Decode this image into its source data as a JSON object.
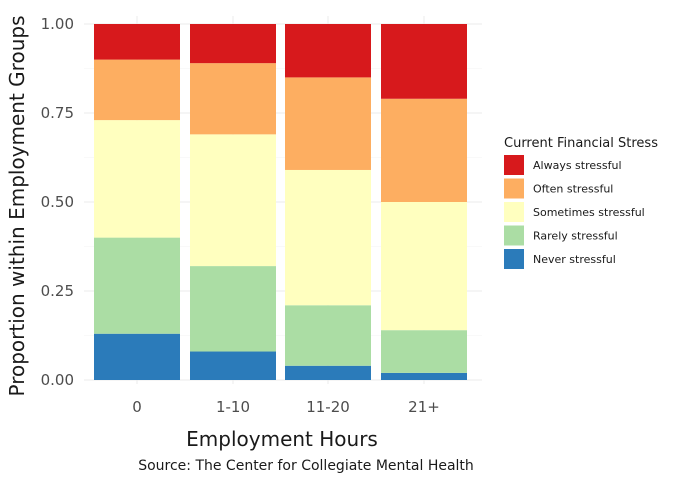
{
  "chart_data": {
    "type": "bar",
    "stacked": true,
    "xlabel": "Employment Hours",
    "ylabel": "Proportion within Employment Groups",
    "caption": "Source: The Center for Collegiate Mental Health",
    "categories": [
      "0",
      "1-10",
      "11-20",
      "21+"
    ],
    "ylim": [
      0,
      1
    ],
    "yticks": [
      "0.00",
      "0.25",
      "0.50",
      "0.75",
      "1.00"
    ],
    "grid": true,
    "legend": {
      "title": "Current Financial Stress",
      "position": "right"
    },
    "series": [
      {
        "name": "Never stressful",
        "color": "#2b7bba",
        "values": [
          0.13,
          0.08,
          0.04,
          0.02
        ]
      },
      {
        "name": "Rarely stressful",
        "color": "#abdda4",
        "values": [
          0.27,
          0.24,
          0.17,
          0.12
        ]
      },
      {
        "name": "Sometimes stressful",
        "color": "#ffffbf",
        "values": [
          0.33,
          0.37,
          0.38,
          0.36
        ]
      },
      {
        "name": "Often stressful",
        "color": "#fdae61",
        "values": [
          0.17,
          0.2,
          0.26,
          0.29
        ]
      },
      {
        "name": "Always stressful",
        "color": "#d7191c",
        "values": [
          0.1,
          0.11,
          0.15,
          0.21
        ]
      }
    ]
  }
}
